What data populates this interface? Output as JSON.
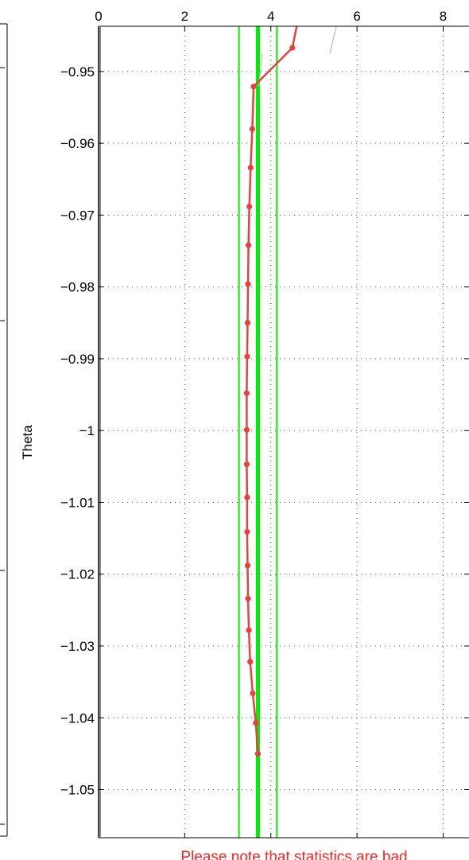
{
  "chart_data": {
    "type": "line",
    "title": "",
    "xlabel": "",
    "ylabel": "Theta",
    "xlim": [
      0,
      8.6
    ],
    "ylim": [
      -1.0567,
      -0.9437
    ],
    "x_axis_position": "top",
    "y_axis_reversed": true,
    "grid": true,
    "x_ticks": [
      0,
      2,
      4,
      6,
      8
    ],
    "x_tick_labels": [
      "0",
      "2",
      "4",
      "6",
      "8"
    ],
    "y_ticks": [
      -0.95,
      -0.96,
      -0.97,
      -0.98,
      -0.99,
      -1.0,
      -1.01,
      -1.02,
      -1.03,
      -1.04,
      -1.05
    ],
    "y_tick_labels": [
      "−0.95",
      "−0.96",
      "−0.97",
      "−0.98",
      "−0.99",
      "−1",
      "−1.01",
      "−1.02",
      "−1.03",
      "−1.04",
      "−1.05"
    ],
    "series": [
      {
        "color": "#e8403f",
        "marker": "dot",
        "points": [
          {
            "x": 4.6,
            "y": -0.9437
          },
          {
            "x": 4.5,
            "y": -0.9467
          },
          {
            "x": 3.6,
            "y": -0.9521
          },
          {
            "x": 3.57,
            "y": -0.958
          },
          {
            "x": 3.53,
            "y": -0.9634
          },
          {
            "x": 3.5,
            "y": -0.9688
          },
          {
            "x": 3.48,
            "y": -0.9742
          },
          {
            "x": 3.47,
            "y": -0.9796
          },
          {
            "x": 3.46,
            "y": -0.985
          },
          {
            "x": 3.45,
            "y": -0.9897
          },
          {
            "x": 3.44,
            "y": -0.9948
          },
          {
            "x": 3.44,
            "y": -0.9999
          },
          {
            "x": 3.44,
            "y": -1.0047
          },
          {
            "x": 3.45,
            "y": -1.0093
          },
          {
            "x": 3.45,
            "y": -1.0141
          },
          {
            "x": 3.46,
            "y": -1.0188
          },
          {
            "x": 3.47,
            "y": -1.0234
          },
          {
            "x": 3.49,
            "y": -1.0278
          },
          {
            "x": 3.52,
            "y": -1.0322
          },
          {
            "x": 3.58,
            "y": -1.0366
          },
          {
            "x": 3.65,
            "y": -1.0407
          },
          {
            "x": 3.7,
            "y": -1.045
          }
        ]
      }
    ],
    "reference_lines": [
      {
        "x": 3.26,
        "color": "#00ee00",
        "style": "thin"
      },
      {
        "x": 3.7,
        "color": "#00ee00",
        "style": "thick"
      },
      {
        "x": 4.14,
        "color": "#00ee00",
        "style": "thin"
      }
    ],
    "faint_segments": [
      {
        "x1": 3.72,
        "y1": -0.9521,
        "x2": 3.8,
        "y2": -0.9475,
        "color": "#bbbbbb"
      },
      {
        "x1": 5.37,
        "y1": -0.9475,
        "x2": 5.52,
        "y2": -0.9437,
        "color": "#bbbbbb"
      }
    ],
    "annotation": {
      "text": "Please note that statistics are bad",
      "color": "#ff2020"
    }
  }
}
